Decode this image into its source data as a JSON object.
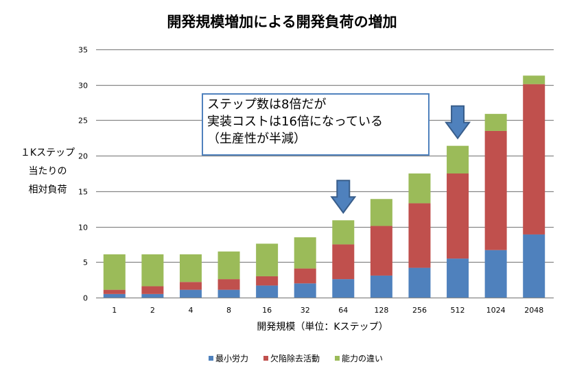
{
  "chart_data": {
    "type": "bar",
    "stacked": true,
    "title": "開発規模増加による開発負荷の増加",
    "xlabel": "開発規模（単位：Kステップ）",
    "ylabel_lines": [
      "１Kステップ",
      "当たりの",
      "相対負荷"
    ],
    "ylim": [
      0,
      35
    ],
    "yticks": [
      0,
      5,
      10,
      15,
      20,
      25,
      30,
      35
    ],
    "grid": true,
    "legend_position": "bottom",
    "categories": [
      "1",
      "2",
      "4",
      "8",
      "16",
      "32",
      "64",
      "128",
      "256",
      "512",
      "1024",
      "2048"
    ],
    "series": [
      {
        "name": "最小労力",
        "color": "#4f81bd",
        "values": [
          0.5,
          0.5,
          1.1,
          1.1,
          1.7,
          2.0,
          2.6,
          3.1,
          4.2,
          5.5,
          6.7,
          8.9
        ]
      },
      {
        "name": "欠陥除去活動",
        "color": "#c0504d",
        "values": [
          0.6,
          1.1,
          1.1,
          1.5,
          1.3,
          2.1,
          4.9,
          7.0,
          9.1,
          12.0,
          16.8,
          21.2
        ]
      },
      {
        "name": "能力の違い",
        "color": "#9bbb59",
        "values": [
          5.0,
          4.5,
          3.9,
          3.9,
          4.6,
          4.4,
          3.4,
          3.8,
          4.2,
          3.9,
          2.4,
          1.2
        ]
      }
    ],
    "annotations": {
      "callout_lines": [
        "ステップ数は8倍だが",
        "実装コストは16倍になっている",
        "（生産性が半減）"
      ],
      "arrows": [
        {
          "category": "64",
          "icon": "down-arrow"
        },
        {
          "category": "512",
          "icon": "down-arrow"
        }
      ]
    }
  }
}
